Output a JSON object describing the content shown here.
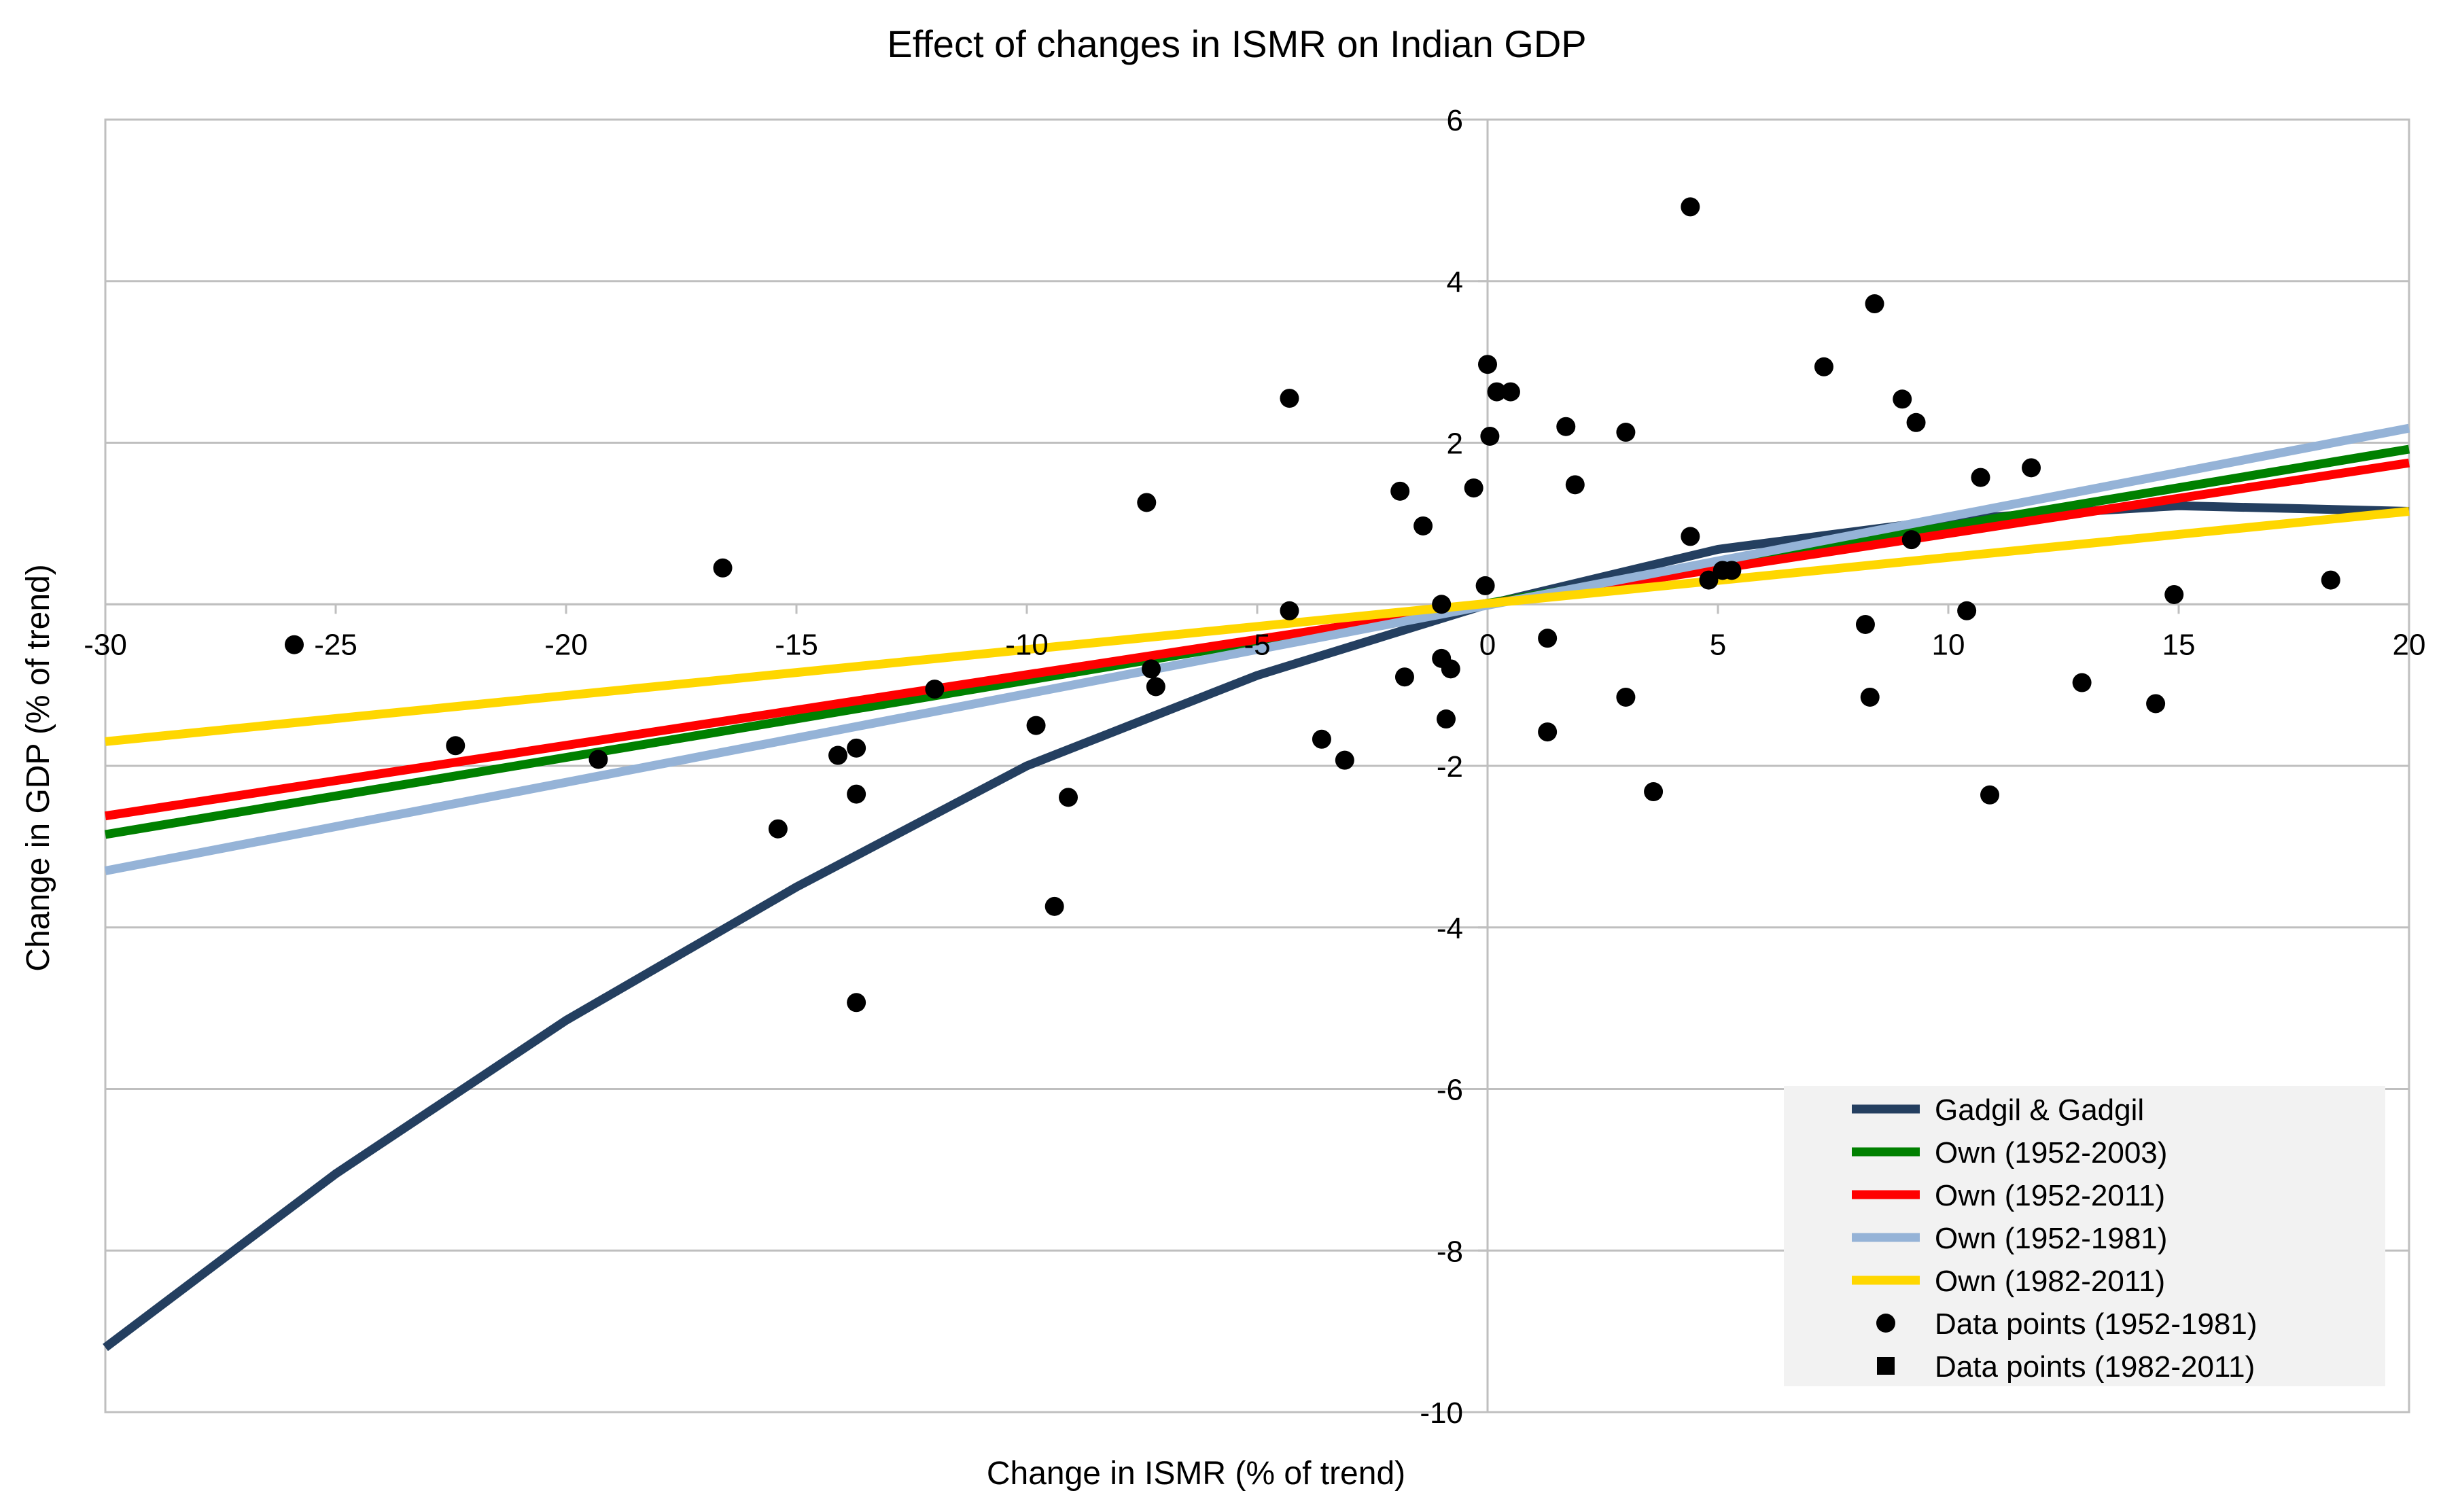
{
  "chart_data": {
    "type": "scatter",
    "title": "Effect of changes in ISMR on Indian GDP",
    "xlabel": "Change in ISMR (% of trend)",
    "ylabel": "Change in GDP (% of trend)",
    "xlim": [
      -30,
      20
    ],
    "ylim": [
      -10,
      6
    ],
    "x_ticks": [
      -30,
      -25,
      -20,
      -15,
      -10,
      -5,
      0,
      5,
      10,
      15,
      20
    ],
    "y_ticks": [
      -10,
      -8,
      -6,
      -4,
      -2,
      2,
      4,
      6
    ],
    "x_tick_labels": [
      "-30",
      "-25",
      "-20",
      "-15",
      "-10",
      "-5",
      "0",
      "5",
      "10",
      "15",
      "20"
    ],
    "y_tick_labels": [
      "-10",
      "-8",
      "-6",
      "-4",
      "-2",
      "2",
      "4",
      "6"
    ],
    "grid": true,
    "legend_position": "bottom-right",
    "lines": [
      {
        "name": "Gadgil & Gadgil",
        "color": "#243F60",
        "points": [
          [
            -30,
            -9.2
          ],
          [
            -25,
            -7.05
          ],
          [
            -20,
            -5.15
          ],
          [
            -15,
            -3.5
          ],
          [
            -10,
            -2.0
          ],
          [
            -5,
            -0.88
          ],
          [
            0,
            0.0
          ],
          [
            5,
            0.68
          ],
          [
            10,
            1.05
          ],
          [
            15,
            1.22
          ],
          [
            20,
            1.15
          ]
        ]
      },
      {
        "name": "Own (1952-2003)",
        "color": "#008000",
        "points": [
          [
            -30,
            -2.85
          ],
          [
            20,
            1.92
          ]
        ]
      },
      {
        "name": "Own (1952-2011)",
        "color": "#FF0000",
        "points": [
          [
            -30,
            -2.62
          ],
          [
            20,
            1.75
          ]
        ]
      },
      {
        "name": "Own (1952-1981)",
        "color": "#95B3D7",
        "points": [
          [
            -30,
            -3.3
          ],
          [
            20,
            2.18
          ]
        ]
      },
      {
        "name": "Own (1982-2011)",
        "color": "#FFD700",
        "points": [
          [
            -30,
            -1.7
          ],
          [
            20,
            1.15
          ]
        ]
      }
    ],
    "series": [
      {
        "name": "Data points (1952-1981)",
        "marker": "circle",
        "color": "#000000",
        "points": [
          [
            -25.9,
            -0.5
          ],
          [
            -22.4,
            -1.75
          ],
          [
            -19.3,
            -1.92
          ],
          [
            -16.6,
            0.45
          ],
          [
            -15.4,
            -2.78
          ],
          [
            -14.1,
            -1.87
          ],
          [
            -13.7,
            -1.78
          ],
          [
            -13.7,
            -2.35
          ],
          [
            -13.7,
            -4.93
          ],
          [
            -12.0,
            -1.05
          ],
          [
            -9.8,
            -1.5
          ],
          [
            -9.4,
            -3.74
          ],
          [
            -9.1,
            -2.39
          ],
          [
            -7.4,
            1.26
          ],
          [
            -7.3,
            -0.8
          ],
          [
            -7.2,
            -1.02
          ],
          [
            -4.3,
            2.55
          ],
          [
            -4.3,
            -0.08
          ],
          [
            -3.6,
            -1.67
          ],
          [
            -3.1,
            -1.93
          ],
          [
            -1.9,
            1.4
          ],
          [
            -1.8,
            -0.9
          ],
          [
            -1.4,
            0.97
          ],
          [
            -1.0,
            0.0
          ],
          [
            -1.0,
            -0.67
          ],
          [
            -0.9,
            -1.42
          ],
          [
            -0.8,
            -0.8
          ],
          [
            -0.3,
            1.44
          ],
          [
            -0.05,
            0.23
          ],
          [
            0.0,
            2.97
          ],
          [
            0.05,
            2.08
          ],
          [
            0.2,
            2.63
          ],
          [
            0.5,
            2.63
          ],
          [
            1.3,
            -0.42
          ],
          [
            1.3,
            -1.58
          ],
          [
            1.7,
            2.2
          ],
          [
            1.9,
            1.48
          ],
          [
            3.0,
            2.13
          ],
          [
            3.0,
            -1.15
          ],
          [
            3.6,
            -2.32
          ],
          [
            4.4,
            4.92
          ],
          [
            4.4,
            0.84
          ],
          [
            4.8,
            0.3
          ],
          [
            5.1,
            0.42
          ],
          [
            5.3,
            0.42
          ],
          [
            7.3,
            2.94
          ],
          [
            8.2,
            -0.25
          ],
          [
            8.3,
            -1.15
          ],
          [
            8.4,
            3.72
          ],
          [
            9.0,
            2.54
          ],
          [
            9.2,
            0.8
          ],
          [
            9.3,
            2.25
          ],
          [
            10.4,
            -0.08
          ],
          [
            10.7,
            1.57
          ],
          [
            10.9,
            -2.36
          ],
          [
            11.8,
            1.69
          ],
          [
            12.9,
            -0.97
          ],
          [
            14.5,
            -1.23
          ],
          [
            14.9,
            0.12
          ],
          [
            18.3,
            0.3
          ]
        ]
      }
    ],
    "legend": [
      {
        "label": "Gadgil & Gadgil",
        "kind": "line",
        "color": "#243F60"
      },
      {
        "label": "Own (1952-2003)",
        "kind": "line",
        "color": "#008000"
      },
      {
        "label": "Own (1952-2011)",
        "kind": "line",
        "color": "#FF0000"
      },
      {
        "label": "Own (1952-1981)",
        "kind": "line",
        "color": "#95B3D7"
      },
      {
        "label": "Own (1982-2011)",
        "kind": "line",
        "color": "#FFD700"
      },
      {
        "label": "Data points (1952-1981)",
        "kind": "circle",
        "color": "#000000"
      },
      {
        "label": "Data points (1982-2011)",
        "kind": "square",
        "color": "#000000"
      }
    ],
    "legend_background": "#F2F2F2",
    "grid_color": "#BFBFBF"
  }
}
